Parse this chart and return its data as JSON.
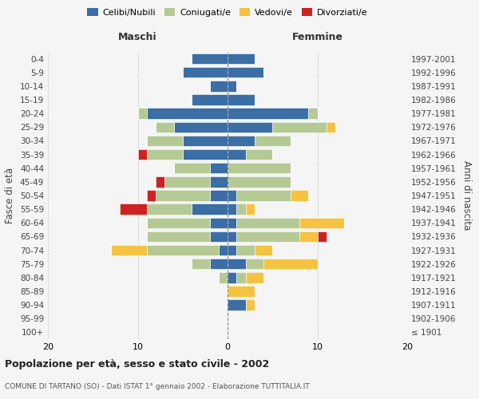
{
  "age_groups": [
    "100+",
    "95-99",
    "90-94",
    "85-89",
    "80-84",
    "75-79",
    "70-74",
    "65-69",
    "60-64",
    "55-59",
    "50-54",
    "45-49",
    "40-44",
    "35-39",
    "30-34",
    "25-29",
    "20-24",
    "15-19",
    "10-14",
    "5-9",
    "0-4"
  ],
  "birth_years": [
    "≤ 1901",
    "1902-1906",
    "1907-1911",
    "1912-1916",
    "1917-1921",
    "1922-1926",
    "1927-1931",
    "1932-1936",
    "1937-1941",
    "1942-1946",
    "1947-1951",
    "1952-1956",
    "1957-1961",
    "1962-1966",
    "1967-1971",
    "1972-1976",
    "1977-1981",
    "1982-1986",
    "1987-1991",
    "1992-1996",
    "1997-2001"
  ],
  "maschi": {
    "celibi": [
      0,
      0,
      0,
      0,
      0,
      2,
      1,
      2,
      2,
      4,
      2,
      2,
      2,
      5,
      5,
      6,
      9,
      4,
      2,
      5,
      4
    ],
    "coniugati": [
      0,
      0,
      0,
      0,
      1,
      2,
      8,
      7,
      7,
      5,
      6,
      5,
      4,
      4,
      4,
      2,
      1,
      0,
      0,
      0,
      0
    ],
    "vedovi": [
      0,
      0,
      0,
      0,
      0,
      0,
      4,
      0,
      0,
      0,
      0,
      0,
      0,
      0,
      0,
      0,
      0,
      0,
      0,
      0,
      0
    ],
    "divorziati": [
      0,
      0,
      0,
      0,
      0,
      0,
      0,
      0,
      0,
      3,
      1,
      1,
      0,
      1,
      0,
      0,
      0,
      0,
      0,
      0,
      0
    ]
  },
  "femmine": {
    "nubili": [
      0,
      0,
      2,
      0,
      1,
      2,
      1,
      1,
      1,
      1,
      1,
      0,
      0,
      2,
      3,
      5,
      9,
      3,
      1,
      4,
      3
    ],
    "coniugate": [
      0,
      0,
      0,
      0,
      1,
      2,
      2,
      7,
      7,
      1,
      6,
      7,
      7,
      3,
      4,
      6,
      1,
      0,
      0,
      0,
      0
    ],
    "vedove": [
      0,
      0,
      1,
      3,
      2,
      6,
      2,
      2,
      5,
      1,
      2,
      0,
      0,
      0,
      0,
      1,
      0,
      0,
      0,
      0,
      0
    ],
    "divorziate": [
      0,
      0,
      0,
      0,
      0,
      0,
      0,
      1,
      0,
      0,
      0,
      0,
      0,
      0,
      0,
      0,
      0,
      0,
      0,
      0,
      0
    ]
  },
  "colors": {
    "celibi": "#3a6ea5",
    "coniugati": "#b5c994",
    "vedovi": "#f5c242",
    "divorziati": "#cc2222"
  },
  "title": "Popolazione per età, sesso e stato civile - 2002",
  "subtitle": "COMUNE DI TARTANO (SO) - Dati ISTAT 1° gennaio 2002 - Elaborazione TUTTITALIA.IT",
  "xlabel_left": "Maschi",
  "xlabel_right": "Femmine",
  "ylabel": "Fasce di età",
  "ylabel_right": "Anni di nascita",
  "xlim": 20,
  "background_color": "#f5f5f5",
  "grid_color": "#cccccc"
}
